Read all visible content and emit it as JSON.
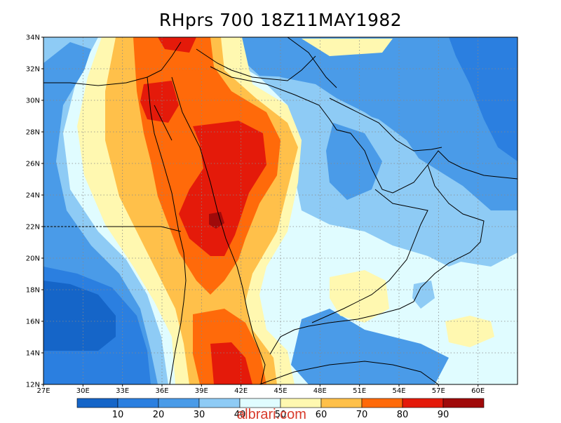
{
  "title": "RHprs 700 18Z11MAY1982",
  "watermark": "albrari.com",
  "map": {
    "lon_range": [
      27,
      63
    ],
    "lat_range": [
      12,
      34
    ],
    "lon_ticks": [
      "27E",
      "30E",
      "33E",
      "36E",
      "39E",
      "42E",
      "45E",
      "48E",
      "51E",
      "54E",
      "57E",
      "60E"
    ],
    "lat_ticks": [
      "12N",
      "14N",
      "16N",
      "18N",
      "20N",
      "22N",
      "24N",
      "26N",
      "28N",
      "30N",
      "32N",
      "34N"
    ],
    "grid": true
  },
  "colorbar": {
    "labels": [
      "10",
      "20",
      "30",
      "40",
      "50",
      "60",
      "70",
      "80",
      "90"
    ],
    "colors": [
      "#1565c8",
      "#2b7fe0",
      "#4a9be8",
      "#8ecbf5",
      "#e0fcff",
      "#fff8b0",
      "#ffc04a",
      "#ff6a0a",
      "#e41a0a",
      "#a00a0a"
    ]
  },
  "palette": {
    "c10": "#1565c8",
    "c20": "#2b7fe0",
    "c30": "#4a9be8",
    "c40": "#8ecbf5",
    "c50": "#e0fcff",
    "c60": "#fff8b0",
    "c70": "#ffc04a",
    "c80": "#ff6a0a",
    "c90": "#e41a0a",
    "c100": "#a00a0a"
  }
}
